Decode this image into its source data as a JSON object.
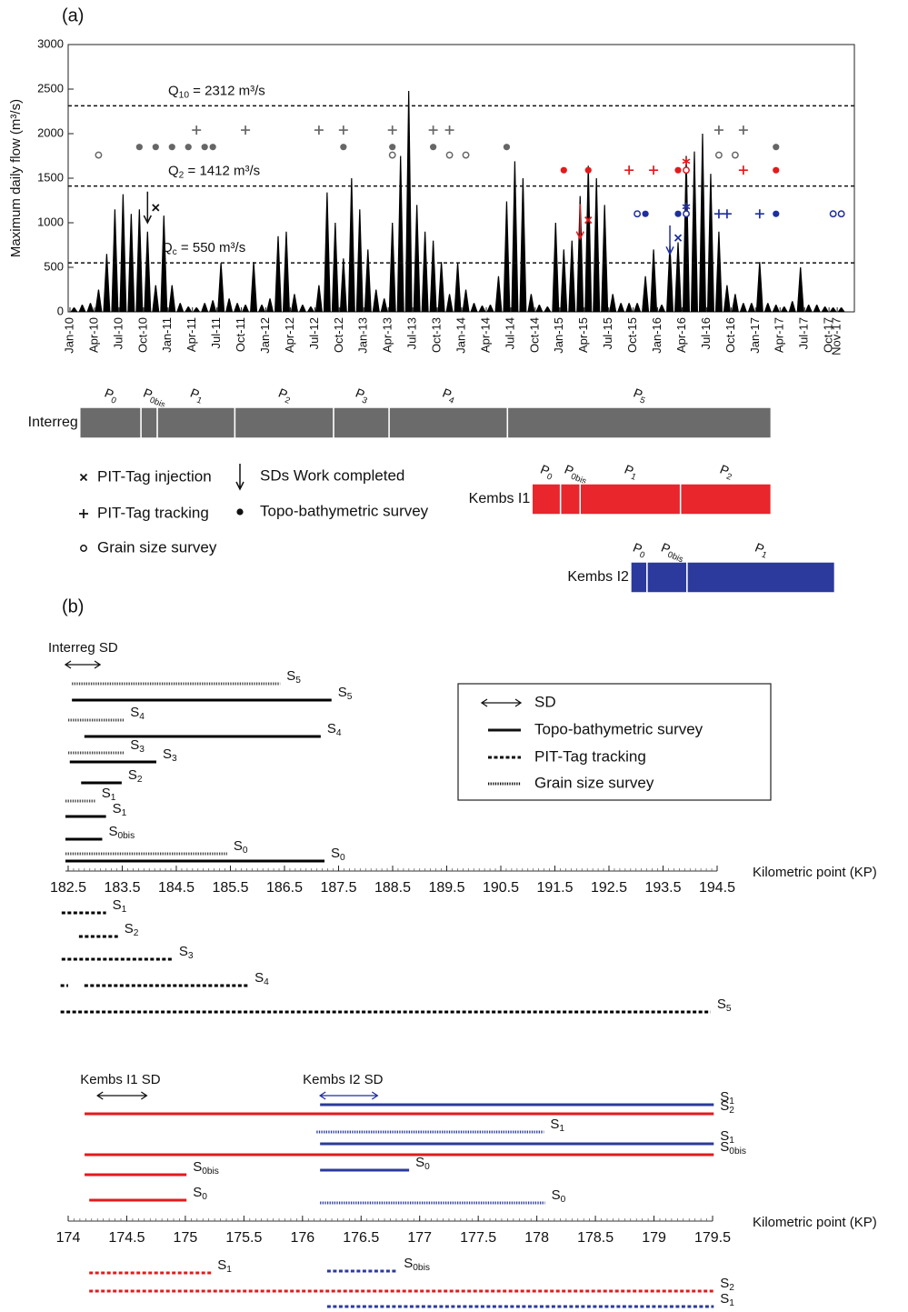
{
  "panel_labels": [
    "(a)",
    "(b)"
  ],
  "chart_data": [
    {
      "type": "flow",
      "y_label": "Maximum daily flow (m³/s)",
      "color": "#000000",
      "categories": [
        "Jan-10",
        null,
        null,
        "Apr-10",
        null,
        null,
        "Jul-10",
        null,
        null,
        "Oct-10",
        null,
        null,
        "Jan-11",
        null,
        null,
        "Apr-11",
        null,
        null,
        "Jul-11",
        null,
        null,
        "Oct-11",
        null,
        null,
        "Jan-12",
        null,
        null,
        "Apr-12",
        null,
        null,
        "Jul-12",
        null,
        null,
        "Oct-12",
        null,
        null,
        "Jan-13",
        null,
        null,
        "Apr-13",
        null,
        null,
        "Jul-13",
        null,
        null,
        "Oct-13",
        null,
        null,
        "Jan-14",
        null,
        null,
        "Apr-14",
        null,
        null,
        "Jul-14",
        null,
        null,
        "Oct-14",
        null,
        null,
        "Jan-15",
        null,
        null,
        "Apr-15",
        null,
        null,
        "Jul-15",
        null,
        null,
        "Oct-15",
        null,
        null,
        "Jan-16",
        null,
        null,
        "Apr-16",
        null,
        null,
        "Jul-16",
        null,
        null,
        "Oct-16",
        null,
        null,
        "Jan-17",
        null,
        null,
        "Apr-17",
        null,
        null,
        "Jul-17",
        null,
        null,
        "Oct-17",
        "Nov-17"
      ],
      "values": [
        50,
        80,
        100,
        250,
        650,
        1150,
        1320,
        1100,
        1150,
        900,
        300,
        1080,
        300,
        100,
        60,
        50,
        100,
        130,
        550,
        150,
        100,
        80,
        560,
        80,
        150,
        850,
        900,
        200,
        80,
        60,
        300,
        1340,
        1000,
        600,
        1500,
        1150,
        700,
        250,
        150,
        1000,
        1750,
        2480,
        1200,
        900,
        800,
        560,
        200,
        550,
        250,
        100,
        70,
        80,
        400,
        1240,
        1690,
        1500,
        200,
        80,
        60,
        1000,
        700,
        800,
        1300,
        1640,
        1500,
        1200,
        200,
        100,
        100,
        100,
        400,
        700,
        80,
        750,
        780,
        1750,
        1800,
        2000,
        1550,
        900,
        300,
        200,
        100,
        100,
        560,
        100,
        80,
        60,
        120,
        500,
        80,
        80,
        60,
        50,
        50
      ],
      "ylim": [
        0,
        3000
      ],
      "yticks": [
        0,
        500,
        1000,
        1500,
        2000,
        2500,
        3000
      ],
      "thresholds": [
        {
          "label": [
            "Q",
            "10",
            " = 2312 m³/s"
          ],
          "value": 2312
        },
        {
          "label": [
            "Q",
            "2",
            " = 1412 m³/s"
          ],
          "value": 1412
        },
        {
          "label": [
            "Q",
            "c",
            " = 550 m³/s"
          ],
          "value": 550
        }
      ],
      "markers": [
        {
          "symbol": "plus",
          "color": "#666666",
          "y": 2040,
          "at": [
            15,
            21,
            30,
            33,
            39,
            44,
            46,
            79,
            82
          ]
        },
        {
          "symbol": "dot",
          "color": "#666666",
          "y": 1850,
          "at": [
            8,
            10,
            12,
            14,
            16,
            17,
            33,
            39,
            44,
            53,
            86
          ]
        },
        {
          "symbol": "circle",
          "color": "#666666",
          "y": 1760,
          "at": [
            3,
            39,
            46,
            48,
            79,
            81
          ]
        },
        {
          "symbol": "dot",
          "color": "#e31a1c",
          "y": 1590,
          "at": [
            60,
            63,
            74,
            86
          ]
        },
        {
          "symbol": "plus",
          "color": "#e31a1c",
          "y": 1590,
          "at": [
            68,
            71,
            82
          ]
        },
        {
          "symbol": "circle",
          "color": "#e31a1c",
          "y": 1590,
          "at": [
            75
          ]
        },
        {
          "symbol": "star",
          "color": "#e31a1c",
          "y": 1690,
          "at": [
            75
          ]
        },
        {
          "symbol": "cross",
          "color": "#e31a1c",
          "y": 1030,
          "at": [
            63
          ]
        },
        {
          "symbol": "circle",
          "color": "#1f2f9e",
          "y": 1100,
          "at": [
            69,
            75,
            93,
            94
          ]
        },
        {
          "symbol": "dot",
          "color": "#1f2f9e",
          "y": 1100,
          "at": [
            70,
            74,
            86
          ]
        },
        {
          "symbol": "plus",
          "color": "#1f2f9e",
          "y": 1100,
          "at": [
            79,
            80,
            84
          ]
        },
        {
          "symbol": "star",
          "color": "#1f2f9e",
          "y": 1180,
          "at": [
            75
          ]
        },
        {
          "symbol": "cross",
          "color": "#1f2f9e",
          "y": 830,
          "at": [
            74
          ]
        },
        {
          "symbol": "cross",
          "color": "#111111",
          "y": 1170,
          "at": [
            10
          ]
        }
      ],
      "arrows": [
        {
          "at": 9,
          "from": 1350,
          "to": 1000,
          "color": "#111111"
        },
        {
          "at": 62,
          "from": 1210,
          "to": 820,
          "color": "#e31a1c"
        },
        {
          "at": 73,
          "from": 970,
          "to": 650,
          "color": "#1f2f9e"
        }
      ],
      "legend": [
        {
          "symbol": "cross",
          "label": "PIT-Tag injection"
        },
        {
          "symbol": "arrow",
          "label": "SDs Work completed"
        },
        {
          "symbol": "plus",
          "label": "PIT-Tag tracking"
        },
        {
          "symbol": "dot",
          "label": "Topo-bathymetric survey"
        },
        {
          "symbol": "circle",
          "label": "Grain size survey"
        }
      ]
    },
    {
      "type": "timeline",
      "rows": [
        {
          "name": "Interreg",
          "color": "#6b6b6b",
          "phases": [
            {
              "label": [
                "P",
                "0"
              ],
              "start": 1.2,
              "end": 8.7
            },
            {
              "label": [
                "P",
                "0bis"
              ],
              "start": 8.7,
              "end": 10.7
            },
            {
              "label": [
                "P",
                "1"
              ],
              "start": 10.7,
              "end": 20.2
            },
            {
              "label": [
                "P",
                "2"
              ],
              "start": 20.2,
              "end": 32.3
            },
            {
              "label": [
                "P",
                "3"
              ],
              "start": 32.3,
              "end": 39.1
            },
            {
              "label": [
                "P",
                "4"
              ],
              "start": 39.1,
              "end": 53.6
            },
            {
              "label": [
                "P",
                "5"
              ],
              "start": 53.6,
              "end": 85.9
            }
          ]
        },
        {
          "name": "Kembs I1",
          "color": "#e8262b",
          "phases": [
            {
              "label": [
                "P",
                "0"
              ],
              "start": 56.6,
              "end": 60.1
            },
            {
              "label": [
                "P",
                "0bis"
              ],
              "start": 60.1,
              "end": 62.5
            },
            {
              "label": [
                "P",
                "1"
              ],
              "start": 62.5,
              "end": 74.8
            },
            {
              "label": [
                "P",
                "2"
              ],
              "start": 74.8,
              "end": 85.9
            }
          ]
        },
        {
          "name": "Kembs I2",
          "color": "#2b3a9c",
          "phases": [
            {
              "label": [
                "P",
                "0"
              ],
              "start": 68.7,
              "end": 70.7
            },
            {
              "label": [
                "P",
                "0bis"
              ],
              "start": 70.7,
              "end": 75.6
            },
            {
              "label": [
                "P",
                "1"
              ],
              "start": 75.6,
              "end": 93.7
            }
          ]
        }
      ]
    },
    {
      "type": "segments",
      "x_label": "Kilometric point (KP)",
      "xlim": [
        182.45,
        194.5
      ],
      "xticks": [
        182.5,
        183.5,
        184.5,
        185.5,
        186.5,
        187.5,
        188.5,
        189.5,
        190.5,
        191.5,
        192.5,
        193.5,
        194.5
      ],
      "sd": [
        {
          "label": "Interreg SD",
          "start": 182.45,
          "end": 183.09,
          "color": "#111111"
        }
      ],
      "segments": [
        {
          "label": [
            "S",
            "5"
          ],
          "style": "dotted",
          "color": "#444444",
          "start": 182.57,
          "end": 186.42
        },
        {
          "label": [
            "S",
            "5"
          ],
          "style": "solid",
          "color": "#000000",
          "start": 182.57,
          "end": 187.37
        },
        {
          "label": [
            "S",
            "4"
          ],
          "style": "dotted",
          "color": "#444444",
          "start": 182.5,
          "end": 183.53
        },
        {
          "label": [
            "S",
            "4"
          ],
          "style": "solid",
          "color": "#000000",
          "start": 182.8,
          "end": 187.17
        },
        {
          "label": [
            "S",
            "3"
          ],
          "style": "dotted",
          "color": "#444444",
          "start": 182.5,
          "end": 183.53
        },
        {
          "label": [
            "S",
            "3"
          ],
          "style": "solid",
          "color": "#000000",
          "start": 182.53,
          "end": 184.13
        },
        {
          "label": [
            "S",
            "2"
          ],
          "style": "solid",
          "color": "#000000",
          "start": 182.74,
          "end": 183.49
        },
        {
          "label": [
            "S",
            "1"
          ],
          "style": "dotted",
          "color": "#444444",
          "start": 182.45,
          "end": 183.0
        },
        {
          "label": [
            "S",
            "1"
          ],
          "style": "solid",
          "color": "#000000",
          "start": 182.45,
          "end": 183.2
        },
        {
          "label": [
            "S",
            "0bis"
          ],
          "style": "solid",
          "color": "#000000",
          "start": 182.45,
          "end": 183.13
        },
        {
          "label": [
            "S",
            "0"
          ],
          "style": "dotted",
          "color": "#444444",
          "start": 182.45,
          "end": 185.44
        },
        {
          "label": [
            "S",
            "0"
          ],
          "style": "solid",
          "color": "#000000",
          "start": 182.45,
          "end": 187.24
        },
        {
          "label": [
            "S",
            "1"
          ],
          "style": "dashed",
          "color": "#000000",
          "start": 182.38,
          "end": 183.2
        },
        {
          "label": [
            "S",
            "2"
          ],
          "style": "dashed",
          "color": "#000000",
          "start": 182.7,
          "end": 183.42
        },
        {
          "label": [
            "S",
            "3"
          ],
          "style": "dashed",
          "color": "#000000",
          "start": 182.38,
          "end": 184.43
        },
        {
          "style": "dashed",
          "color": "#000000",
          "start": 182.36,
          "end": 182.5
        },
        {
          "label": [
            "S",
            "4"
          ],
          "style": "dashed",
          "color": "#000000",
          "start": 182.8,
          "end": 185.83
        },
        {
          "label": [
            "S",
            "5"
          ],
          "style": "dashed",
          "color": "#000000",
          "start": 182.36,
          "end": 194.38
        }
      ],
      "legend": [
        {
          "style": "sd",
          "label": "SD"
        },
        {
          "style": "solid",
          "label": "Topo-bathymetric survey"
        },
        {
          "style": "dashed",
          "label": "PIT-Tag tracking"
        },
        {
          "style": "dotted",
          "label": "Grain size survey"
        }
      ]
    },
    {
      "type": "segments",
      "x_label": "Kilometric point (KP)",
      "xlim": [
        174,
        179.5
      ],
      "xticks": [
        174,
        174.5,
        175,
        175.5,
        176,
        176.5,
        177,
        177.5,
        178,
        178.5,
        179,
        179.5
      ],
      "sd": [
        {
          "label": "Kembs I1 SD",
          "start": 174.25,
          "end": 174.67,
          "color": "#111111"
        },
        {
          "label": "Kembs I2 SD",
          "start": 176.15,
          "end": 176.64,
          "color": "#1f2f9e"
        }
      ],
      "segments": [
        {
          "label": [
            "S",
            "1"
          ],
          "style": "solid",
          "color": "#2b3a9c",
          "start": 176.15,
          "end": 179.51
        },
        {
          "label": [
            "S",
            "2"
          ],
          "style": "solid",
          "color": "#e31a1c",
          "start": 174.14,
          "end": 179.51
        },
        {
          "label": [
            "S",
            "1"
          ],
          "style": "dotted",
          "color": "#2b3a9c",
          "start": 176.12,
          "end": 178.06
        },
        {
          "label": [
            "S",
            "1"
          ],
          "style": "solid",
          "color": "#2b3a9c",
          "start": 176.15,
          "end": 179.51
        },
        {
          "label": [
            "S",
            "0bis"
          ],
          "style": "solid",
          "color": "#e31a1c",
          "start": 174.14,
          "end": 179.51
        },
        {
          "label": [
            "S",
            "0"
          ],
          "style": "solid",
          "color": "#2b3a9c",
          "start": 176.15,
          "end": 176.91
        },
        {
          "label": [
            "S",
            "0bis"
          ],
          "style": "solid",
          "color": "#e31a1c",
          "start": 174.14,
          "end": 175.01
        },
        {
          "label": [
            "S",
            "0"
          ],
          "style": "dotted",
          "color": "#2b3a9c",
          "start": 176.15,
          "end": 178.07
        },
        {
          "label": [
            "S",
            "0"
          ],
          "style": "solid",
          "color": "#e31a1c",
          "start": 174.18,
          "end": 175.01
        },
        {
          "label": [
            "S",
            "1"
          ],
          "style": "dashed",
          "color": "#e31a1c",
          "start": 174.18,
          "end": 175.22
        },
        {
          "label": [
            "S",
            "0bis"
          ],
          "style": "dashed",
          "color": "#2b3a9c",
          "start": 176.21,
          "end": 176.81
        },
        {
          "label": [
            "S",
            "2"
          ],
          "style": "dashed",
          "color": "#e31a1c",
          "start": 174.18,
          "end": 179.51
        },
        {
          "label": [
            "S",
            "1"
          ],
          "style": "dashed",
          "color": "#2b3a9c",
          "start": 176.21,
          "end": 179.51
        }
      ]
    }
  ]
}
